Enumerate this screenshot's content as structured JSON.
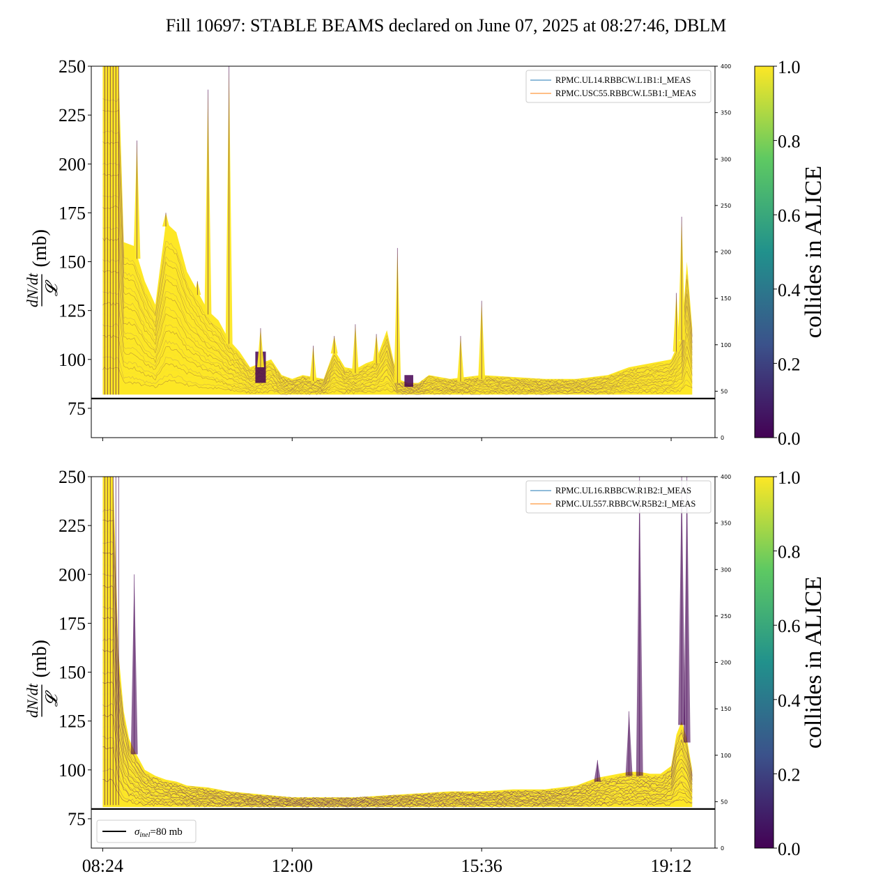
{
  "chart_data": [
    {
      "type": "line",
      "panel": "top",
      "title": "Fill 10697: STABLE BEAMS declared on June 07, 2025 at 08:27:46, DBLM",
      "ylabel_num": "dN/dt",
      "ylabel_den": "𝓛",
      "ylabel_unit": "(mb)",
      "ylim": [
        60,
        250
      ],
      "yticks": [
        75,
        100,
        125,
        150,
        175,
        200,
        225,
        250
      ],
      "secondary_ylim": [
        0,
        400
      ],
      "secondary_yticks": [
        0,
        50,
        100,
        150,
        200,
        250,
        300,
        350,
        400
      ],
      "xlim": [
        "08:11",
        "20:02"
      ],
      "xticks": [
        "08:24",
        "12:00",
        "15:36",
        "19:12"
      ],
      "show_xtick_labels": false,
      "reference_line": {
        "y": 80,
        "color": "#000000"
      },
      "legend": [
        {
          "label": "RPMC.UL14.RBBCW.L1B1:I_MEAS",
          "color": "#1f77b4"
        },
        {
          "label": "RPMC.USC55.RBBCW.L5B1:I_MEAS",
          "color": "#ff7f0e"
        }
      ],
      "legend_position": "top-right",
      "envelope_series": {
        "x": [
          "08:24",
          "08:30",
          "08:36",
          "08:42",
          "08:48",
          "09:00",
          "09:12",
          "09:24",
          "09:36",
          "09:48",
          "10:00",
          "10:12",
          "10:24",
          "10:36",
          "10:48",
          "11:00",
          "11:12",
          "11:24",
          "11:36",
          "11:48",
          "12:00",
          "12:12",
          "12:24",
          "12:36",
          "12:48",
          "13:00",
          "13:12",
          "13:24",
          "13:36",
          "13:48",
          "14:00",
          "14:12",
          "14:24",
          "14:36",
          "15:00",
          "15:36",
          "16:12",
          "16:48",
          "17:24",
          "18:00",
          "18:24",
          "18:48",
          "19:12",
          "19:24",
          "19:30",
          "19:36"
        ],
        "upper": [
          250,
          250,
          250,
          250,
          160,
          158,
          140,
          128,
          170,
          165,
          145,
          135,
          125,
          120,
          110,
          104,
          96,
          98,
          100,
          92,
          90,
          92,
          91,
          90,
          105,
          96,
          95,
          98,
          100,
          115,
          90,
          88,
          88,
          92,
          90,
          92,
          91,
          90,
          90,
          92,
          96,
          98,
          100,
          112,
          150,
          116
        ],
        "lower": [
          82,
          82,
          82,
          82,
          82,
          82,
          82,
          82,
          82,
          82,
          82,
          82,
          82,
          82,
          82,
          82,
          82,
          82,
          82,
          82,
          82,
          82,
          82,
          82,
          82,
          82,
          82,
          82,
          82,
          82,
          82,
          82,
          82,
          82,
          82,
          82,
          82,
          82,
          82,
          82,
          82,
          82,
          82,
          82,
          82,
          82
        ]
      },
      "spikes": [
        {
          "x": "09:03",
          "y": 212
        },
        {
          "x": "09:36",
          "y": 175
        },
        {
          "x": "10:12",
          "y": 140
        },
        {
          "x": "10:24",
          "y": 238
        },
        {
          "x": "10:48",
          "y": 250
        },
        {
          "x": "11:24",
          "y": 116
        },
        {
          "x": "12:24",
          "y": 107
        },
        {
          "x": "12:48",
          "y": 112
        },
        {
          "x": "13:12",
          "y": 118
        },
        {
          "x": "13:36",
          "y": 113
        },
        {
          "x": "14:00",
          "y": 157
        },
        {
          "x": "15:12",
          "y": 112
        },
        {
          "x": "15:36",
          "y": 130
        },
        {
          "x": "19:18",
          "y": 134
        },
        {
          "x": "19:24",
          "y": 173
        }
      ],
      "dark_segments": [
        {
          "x": [
            "11:18",
            "11:30"
          ],
          "y": [
            88,
            104
          ]
        },
        {
          "x": [
            "14:08",
            "14:18"
          ],
          "y": [
            86,
            92
          ]
        }
      ]
    },
    {
      "type": "line",
      "panel": "bottom",
      "ylabel_num": "dN/dt",
      "ylabel_den": "𝓛",
      "ylabel_unit": "(mb)",
      "ylim": [
        60,
        250
      ],
      "yticks": [
        75,
        100,
        125,
        150,
        175,
        200,
        225,
        250
      ],
      "secondary_ylim": [
        0,
        400
      ],
      "secondary_yticks": [
        0,
        50,
        100,
        150,
        200,
        250,
        300,
        350,
        400
      ],
      "xlim": [
        "08:11",
        "20:02"
      ],
      "xticks": [
        "08:24",
        "12:00",
        "15:36",
        "19:12"
      ],
      "show_xtick_labels": true,
      "reference_line": {
        "y": 80,
        "color": "#000000",
        "label_prefix": "σ",
        "label_sub": "inel",
        "label_suffix": "=80 mb"
      },
      "legend": [
        {
          "label": "RPMC.UL16.RBBCW.R1B2:I_MEAS",
          "color": "#1f77b4"
        },
        {
          "label": "RPMC.UL557.RBBCW.R5B2:I_MEAS",
          "color": "#ff7f0e"
        }
      ],
      "legend_position": "top-right",
      "envelope_series": {
        "x": [
          "08:24",
          "08:30",
          "08:36",
          "08:42",
          "08:48",
          "08:54",
          "09:00",
          "09:12",
          "09:24",
          "09:36",
          "09:48",
          "10:00",
          "10:24",
          "10:48",
          "11:12",
          "11:36",
          "12:00",
          "12:36",
          "13:12",
          "13:48",
          "14:24",
          "15:00",
          "15:36",
          "16:12",
          "16:48",
          "17:24",
          "17:48",
          "18:00",
          "18:12",
          "18:24",
          "18:36",
          "18:48",
          "19:00",
          "19:12",
          "19:18",
          "19:24",
          "19:30",
          "19:36"
        ],
        "upper": [
          250,
          250,
          250,
          160,
          130,
          116,
          110,
          100,
          97,
          95,
          94,
          92,
          91,
          89,
          88,
          87,
          86,
          86,
          86,
          87,
          88,
          89,
          89,
          90,
          90,
          92,
          96,
          97,
          98,
          99,
          99,
          98,
          98,
          102,
          118,
          125,
          116,
          100
        ],
        "lower": [
          81,
          81,
          81,
          81,
          81,
          81,
          81,
          81,
          81,
          81,
          81,
          81,
          81,
          81,
          81,
          81,
          81,
          81,
          81,
          81,
          81,
          81,
          81,
          81,
          81,
          81,
          81,
          81,
          81,
          81,
          81,
          81,
          81,
          81,
          81,
          81,
          81,
          81
        ]
      },
      "spikes": [
        {
          "x": "09:00",
          "y": 200
        },
        {
          "x": "17:48",
          "y": 105
        },
        {
          "x": "18:24",
          "y": 130
        },
        {
          "x": "18:36",
          "y": 250
        },
        {
          "x": "19:24",
          "y": 250
        },
        {
          "x": "19:30",
          "y": 250
        }
      ]
    }
  ],
  "colorbars": [
    {
      "label": "collides in ALICE",
      "min": 0.0,
      "max": 1.0,
      "ticks": [
        "0.0",
        "0.2",
        "0.4",
        "0.6",
        "0.8",
        "1.0"
      ],
      "colormap": [
        "#440154",
        "#3b528b",
        "#21918c",
        "#5ec962",
        "#fde725"
      ]
    },
    {
      "label": "collides in ALICE",
      "min": 0.0,
      "max": 1.0,
      "ticks": [
        "0.0",
        "0.2",
        "0.4",
        "0.6",
        "0.8",
        "1.0"
      ],
      "colormap": [
        "#440154",
        "#3b528b",
        "#21918c",
        "#5ec962",
        "#fde725"
      ]
    }
  ],
  "colors": {
    "collides": "#fde725",
    "not_collides": "#440154",
    "mid": "#8a5a7a"
  }
}
